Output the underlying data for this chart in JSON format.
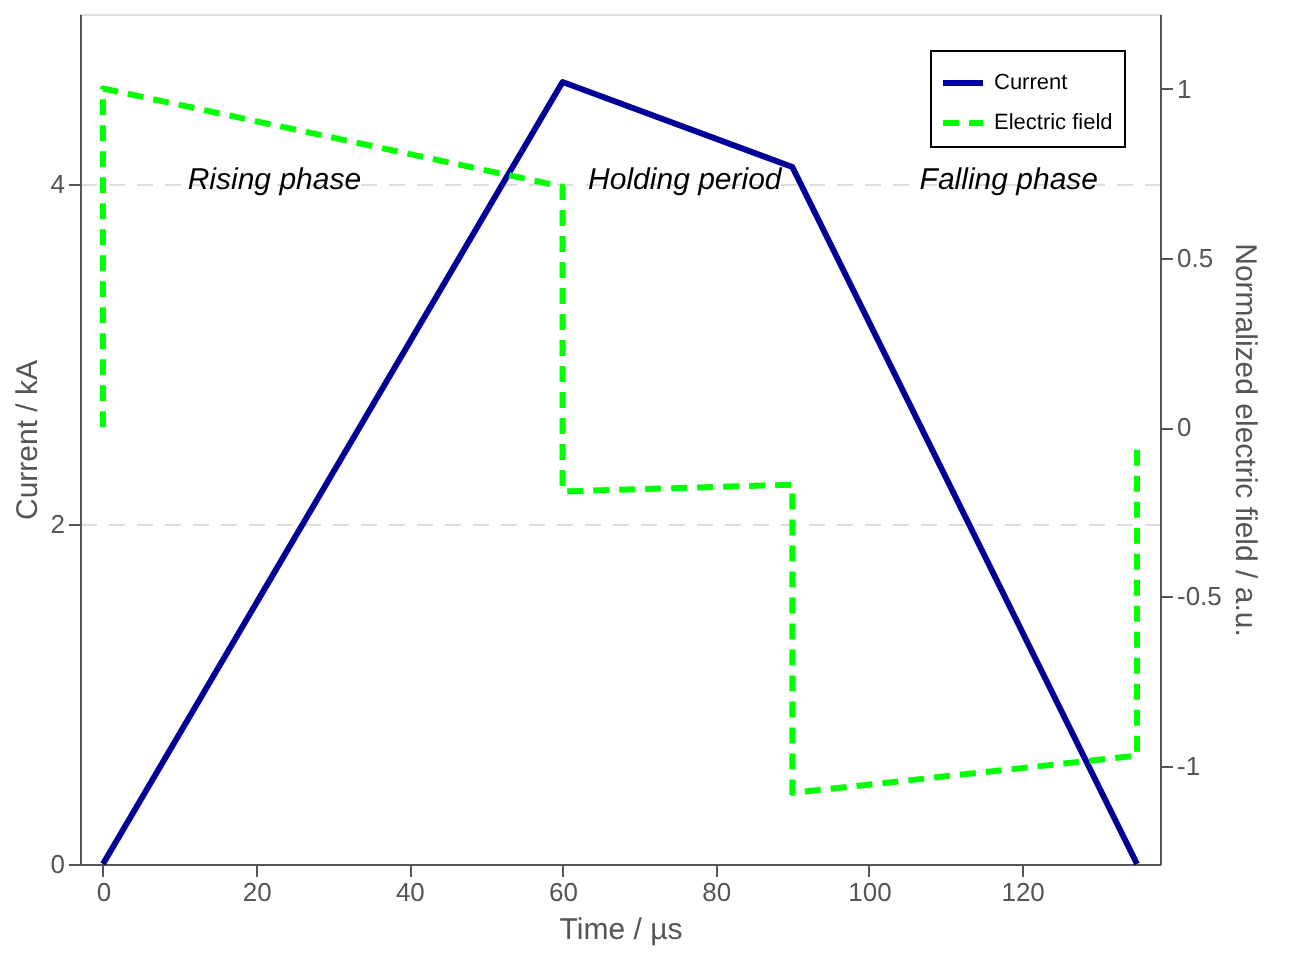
{
  "chart_data": {
    "type": "line",
    "xlabel": "Time / µs",
    "ylabel": "Current / kA",
    "y2label": "Normalized electric field / a.u.",
    "series": [
      {
        "name": "Current",
        "color": "#000099",
        "x": [
          0,
          60,
          90,
          135
        ],
        "values": [
          0,
          4.6,
          4.1,
          0
        ]
      },
      {
        "name": "Electric field",
        "color": "#00ff00",
        "axis": "y2",
        "line_style": "dashed",
        "x": [
          0,
          0,
          60,
          60,
          90,
          90,
          135,
          135
        ],
        "values": [
          0,
          1,
          0.71,
          -0.19,
          -0.17,
          -1.08,
          -0.97,
          -0.05
        ]
      }
    ],
    "xlim": [
      -3,
      138
    ],
    "xticks": [
      0,
      20,
      40,
      60,
      80,
      100,
      120
    ],
    "ylim": [
      0,
      5
    ],
    "yticks": [
      0,
      2,
      4
    ],
    "y2lim": [
      -1.29,
      1.22
    ],
    "y2ticks": [
      -1,
      -0.5,
      0,
      0.5,
      1
    ],
    "grid": "y",
    "legend": "top right",
    "line_style": "solid",
    "annotations": [
      "Rising phase",
      "Holding period",
      "Falling phase"
    ]
  }
}
